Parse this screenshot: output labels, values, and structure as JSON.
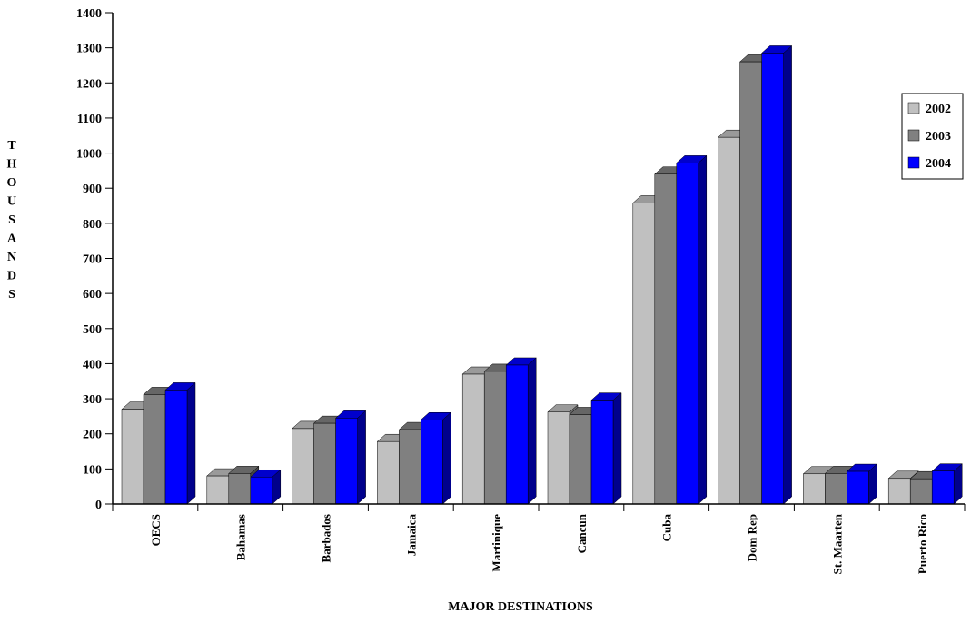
{
  "chart_data": {
    "type": "bar",
    "style": "3d-clustered",
    "title": "",
    "xlabel": "MAJOR DESTINATIONS",
    "ylabel": "THOUSANDS",
    "ylim": [
      0,
      1400
    ],
    "yticks": [
      0,
      100,
      200,
      300,
      400,
      500,
      600,
      700,
      800,
      900,
      1000,
      1100,
      1200,
      1300,
      1400
    ],
    "grid": false,
    "legend_position": "right",
    "categories": [
      "OECS",
      "Bahamas",
      "Barbados",
      "Jamaica",
      "Martinique",
      "Cancun",
      "Cuba",
      "Dom Rep",
      "St. Maarten",
      "Puerto Rico"
    ],
    "series": [
      {
        "name": "2002",
        "color": "#c0c0c0",
        "values": [
          270,
          80,
          215,
          178,
          370,
          262,
          858,
          1045,
          86,
          73
        ]
      },
      {
        "name": "2003",
        "color": "#808080",
        "values": [
          312,
          87,
          230,
          212,
          378,
          255,
          940,
          1260,
          87,
          72
        ]
      },
      {
        "name": "2004",
        "color": "#0000ff",
        "values": [
          325,
          77,
          245,
          240,
          396,
          296,
          972,
          1285,
          93,
          94
        ]
      }
    ]
  }
}
